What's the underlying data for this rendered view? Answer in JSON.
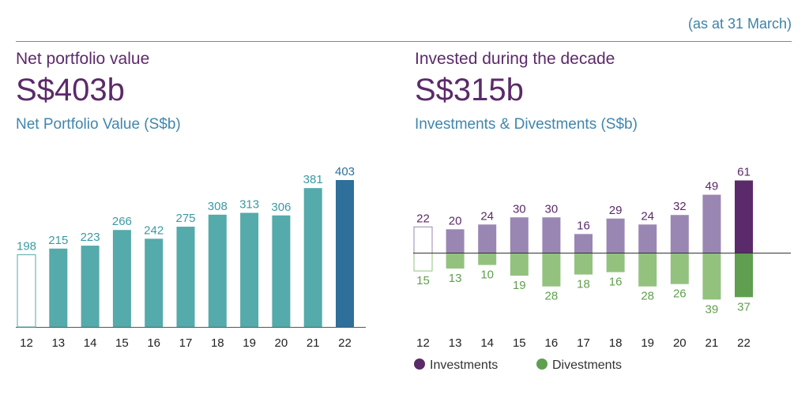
{
  "header": {
    "note": "(as at 31 March)"
  },
  "left": {
    "kicker": "Net portfolio value",
    "big": "S$403b",
    "sub": "Net Portfolio Value (S$b)"
  },
  "right": {
    "kicker": "Invested during the decade",
    "big": "S$315b",
    "sub": "Investments & Divestments (S$b)"
  },
  "colors": {
    "teal": "#55aaab",
    "teal_dark": "#2e6f9b",
    "purple": "#9a86b3",
    "purple_dark": "#5b2a6a",
    "green": "#93c27f",
    "green_dark": "#5f9f4f",
    "teal_text": "#3a9aa3",
    "purple_text": "#5b2a6a",
    "green_text": "#5f9f4f"
  },
  "chart_data": [
    {
      "type": "bar",
      "title": "Net Portfolio Value (S$b)",
      "categories": [
        "12",
        "13",
        "14",
        "15",
        "16",
        "17",
        "18",
        "19",
        "20",
        "21",
        "22"
      ],
      "values": [
        198,
        215,
        223,
        266,
        242,
        275,
        308,
        313,
        306,
        381,
        403
      ],
      "ylim": [
        0,
        403
      ],
      "grid": false,
      "legend": "none"
    },
    {
      "type": "bar",
      "title": "Investments & Divestments (S$b)",
      "categories": [
        "12",
        "13",
        "14",
        "15",
        "16",
        "17",
        "18",
        "19",
        "20",
        "21",
        "22"
      ],
      "series": [
        {
          "name": "Investments",
          "values": [
            22,
            20,
            24,
            30,
            30,
            16,
            29,
            24,
            32,
            49,
            61
          ]
        },
        {
          "name": "Divestments",
          "values": [
            15,
            13,
            10,
            19,
            28,
            18,
            16,
            28,
            26,
            39,
            37
          ]
        }
      ],
      "grid": false,
      "legend": "bottom"
    }
  ]
}
